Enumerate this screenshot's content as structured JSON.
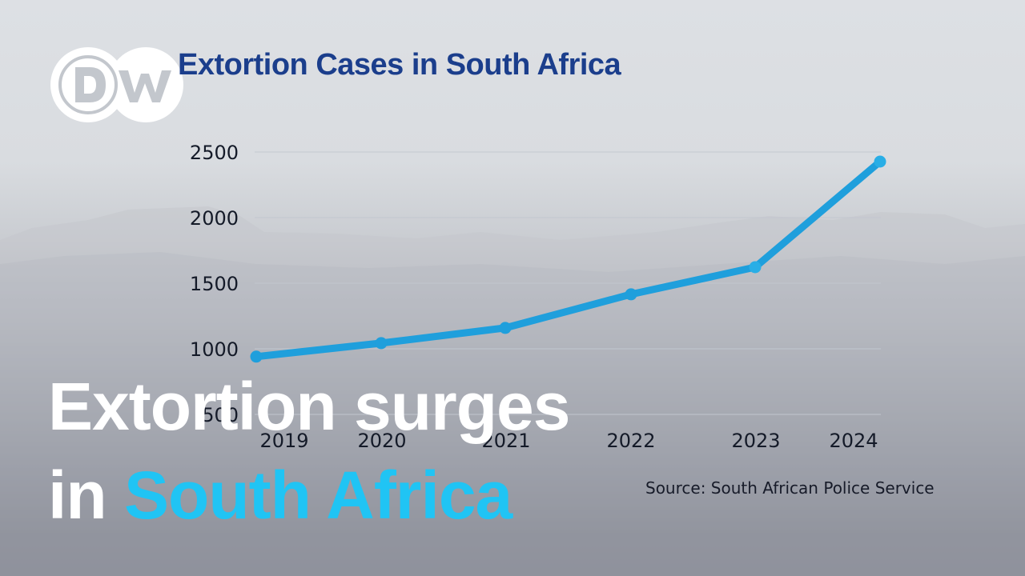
{
  "brand": {
    "logo_text": "DW",
    "logo_color": "#ffffff",
    "logo_glyph_color": "#c3c7cd"
  },
  "headline": {
    "line1": "Extortion surges",
    "line2_prefix": "in",
    "line2_highlight": "South Africa",
    "highlight_color": "#20c4f4"
  },
  "chart_data": {
    "type": "line",
    "title": "Extortion Cases in South Africa",
    "xlabel": "",
    "ylabel": "",
    "categories": [
      "2019",
      "2020",
      "2021",
      "2022",
      "2023",
      "2024"
    ],
    "x_tick_labels": [
      "2019",
      "2020",
      "2021",
      "2022",
      "2023",
      "2024"
    ],
    "series": [
      {
        "name": "Extortion cases",
        "values": [
          940,
          1043,
          1159,
          1415,
          1622,
          2427
        ],
        "color": "#1f9fdc"
      }
    ],
    "y_ticks": [
      500,
      1000,
      1500,
      2000,
      2500
    ],
    "ylim": [
      500,
      2500
    ],
    "grid": true,
    "legend": "none",
    "source": "Source: South African Police Service"
  }
}
